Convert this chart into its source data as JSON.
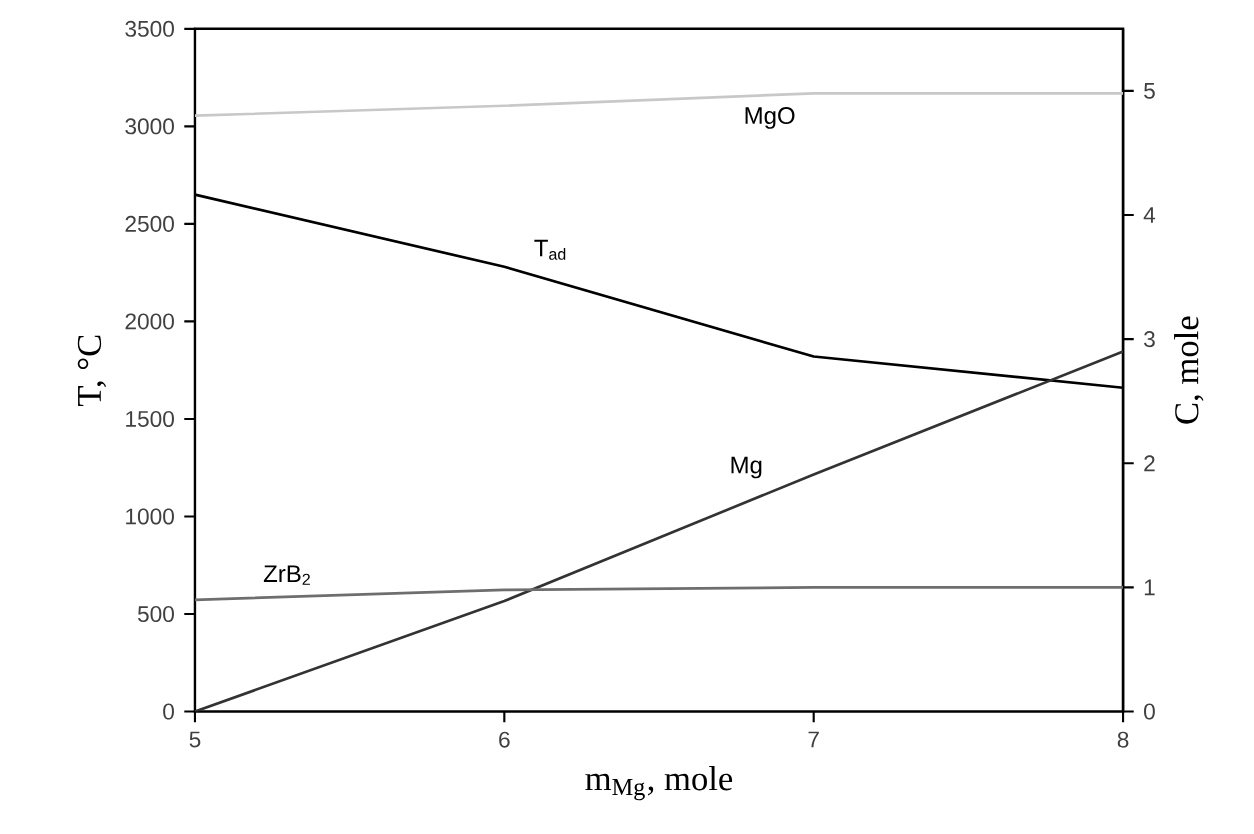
{
  "chart_data": {
    "type": "line",
    "xlabel": "m$_{Mg}$, mole",
    "ylabel": "T, °C",
    "y2label": "C, mole",
    "x": [
      5,
      6,
      7,
      8
    ],
    "xlim": [
      5,
      8
    ],
    "xticks": [
      5,
      6,
      7,
      8
    ],
    "ylim": [
      0,
      3500
    ],
    "yticks": [
      0,
      500,
      1000,
      1500,
      2000,
      2500,
      3000,
      3500
    ],
    "y2lim": [
      0,
      5.5
    ],
    "y2ticks": [
      0,
      1,
      2,
      3,
      4,
      5
    ],
    "grid": false,
    "marker": "none",
    "line_style": "solid",
    "series": [
      {
        "name": "T$_{ad}$",
        "color": "#000000",
        "values": [
          2650,
          2280,
          1820,
          1660
        ]
      },
      {
        "name": "MgO",
        "color": "#c8c8c8",
        "axis": "y2",
        "values": [
          4.8,
          4.88,
          4.98,
          4.98
        ]
      },
      {
        "name": "Mg",
        "color": "#333333",
        "axis": "y2",
        "values": [
          0,
          0.89,
          1.91,
          2.9
        ]
      },
      {
        "name": "ZrB$_{2}$",
        "color": "#6e6e6e",
        "axis": "y2",
        "values": [
          0.9,
          0.98,
          1.0,
          1.0
        ]
      }
    ]
  }
}
